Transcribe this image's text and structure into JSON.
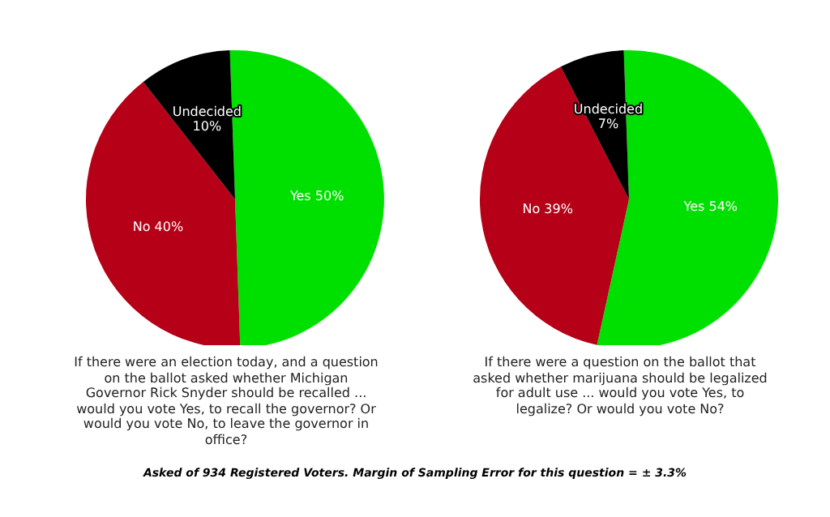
{
  "chart_data": [
    {
      "type": "pie",
      "categories": [
        "Yes",
        "No",
        "Undecided"
      ],
      "values": [
        50,
        40,
        10
      ],
      "value_labels": [
        "50%",
        "40%",
        "10%"
      ],
      "colors": [
        "#00e000",
        "#b50017",
        "#000000"
      ],
      "annotations": [
        "If there were an election today, and a question on the ballot asked whether Michigan Governor Rick Snyder should be recalled ... would you vote Yes, to recall the governor? Or would you vote No, to leave the governor in office?",
        "Asked of 934 Registered Voters. Margin of Sampling Error for this question = ± 3.3%"
      ]
    },
    {
      "type": "pie",
      "categories": [
        "Yes",
        "No",
        "Undecided"
      ],
      "values": [
        54,
        39,
        7
      ],
      "value_labels": [
        "54%",
        "39%",
        "7%"
      ],
      "colors": [
        "#00e000",
        "#b50017",
        "#000000"
      ],
      "annotations": [
        "If there were a question on the ballot that asked whether marijuana should be legalized for adult use ... would you vote Yes, to legalize? Or would you vote No?"
      ]
    }
  ]
}
